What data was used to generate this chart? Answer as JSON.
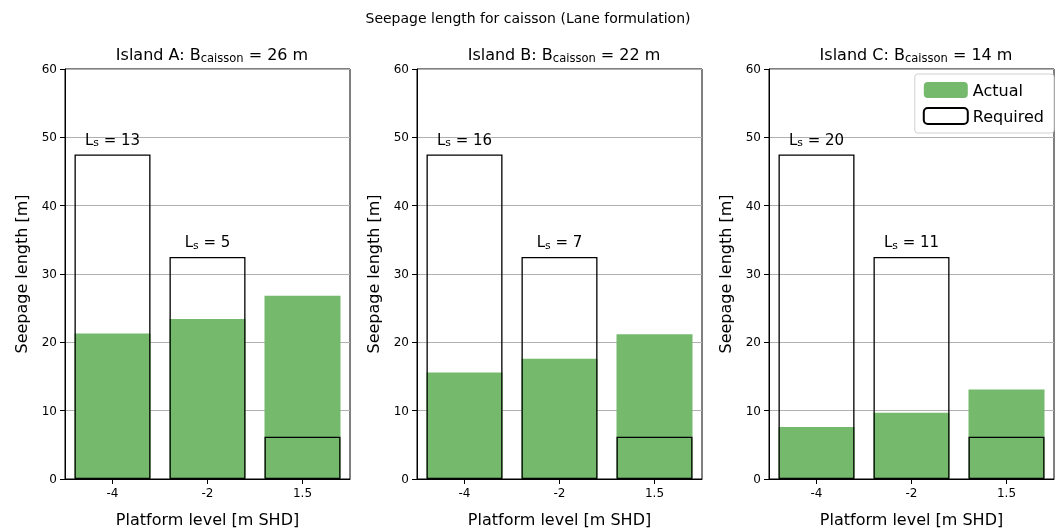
{
  "chart_data": [
    {
      "type": "bar",
      "title": "Island A: B$_{caisson}$ = 26 m",
      "xlabel": "Platform level [m SHD]",
      "ylabel": "Seepage length [m]",
      "categories": [
        "-4",
        "-2",
        "1.5"
      ],
      "series": [
        {
          "color": "#74b96c",
          "values": [
            21.3,
            23.4,
            26.8
          ]
        },
        {
          "color": "#000000",
          "values": [
            47.5,
            32.5,
            6.2
          ]
        }
      ],
      "ylim": [
        0,
        60
      ],
      "yticks": [
        0,
        10,
        20,
        30,
        40,
        50,
        60
      ],
      "grid": "y",
      "legend": false,
      "annotations": [
        "Seepage length for caisson (Lane formulation)",
        {
          "text": "L$_{s}$ = 13",
          "x": "-4",
          "y": 47.5
        },
        {
          "text": "L$_{s}$ = 5",
          "x": "-2",
          "y": 32.5
        }
      ]
    },
    {
      "type": "bar",
      "title": "Island B: B$_{caisson}$ = 22 m",
      "xlabel": "Platform level [m SHD]",
      "ylabel": "Seepage length [m]",
      "categories": [
        "-4",
        "-2",
        "1.5"
      ],
      "series": [
        {
          "color": "#74b96c",
          "values": [
            15.6,
            17.6,
            21.2
          ]
        },
        {
          "color": "#000000",
          "values": [
            47.5,
            32.5,
            6.2
          ]
        }
      ],
      "ylim": [
        0,
        60
      ],
      "yticks": [
        0,
        10,
        20,
        30,
        40,
        50,
        60
      ],
      "grid": "y",
      "legend": false,
      "annotations": [
        {
          "text": "L$_{s}$ = 16",
          "x": "-4",
          "y": 47.5
        },
        {
          "text": "L$_{s}$ = 7",
          "x": "-2",
          "y": 32.5
        }
      ]
    },
    {
      "type": "bar",
      "title": "Island C: B$_{caisson}$ = 14 m",
      "xlabel": "Platform level [m SHD]",
      "ylabel": "Seepage length [m]",
      "categories": [
        "-4",
        "-2",
        "1.5"
      ],
      "series": [
        {
          "name": "Actual",
          "color": "#74b96c",
          "values": [
            7.6,
            9.7,
            13.1
          ]
        },
        {
          "name": "Required",
          "color": "#000000",
          "values": [
            47.5,
            32.5,
            6.2
          ]
        }
      ],
      "ylim": [
        0,
        60
      ],
      "yticks": [
        0,
        10,
        20,
        30,
        40,
        50,
        60
      ],
      "grid": "y",
      "legend": "top right",
      "annotations": [
        {
          "text": "L$_{s}$ = 20",
          "x": "-4",
          "y": 47.5
        },
        {
          "text": "L$_{s}$ = 11",
          "x": "-2",
          "y": 32.5
        }
      ]
    }
  ]
}
